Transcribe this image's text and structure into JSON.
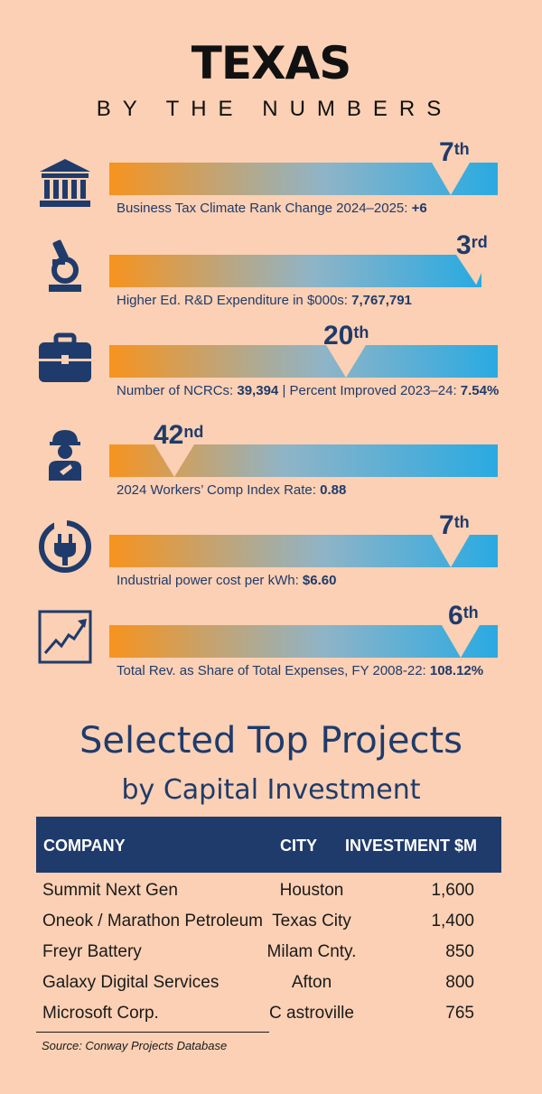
{
  "header": {
    "title": "TEXAS",
    "subtitle": "BY THE NUMBERS"
  },
  "gradient": {
    "start": "#f7931e",
    "end": "#29aae2"
  },
  "metrics": [
    {
      "icon": "courthouse-icon",
      "rank_num": "7",
      "rank_suffix": "th",
      "label": "Business Tax Climate Rank Change 2024–2025:",
      "value": "+6",
      "rank_position": 7
    },
    {
      "icon": "microscope-icon",
      "rank_num": "3",
      "rank_suffix": "rd",
      "label": "Higher Ed. R&D Expenditure in $000s:",
      "value": "7,767,791",
      "rank_position": 3
    },
    {
      "icon": "briefcase-icon",
      "rank_num": "20",
      "rank_suffix": "th",
      "label": "Number of NCRCs:",
      "value": "39,394",
      "label2": "| Percent Improved 2023–24:",
      "value2": "7.54%",
      "rank_position": 20
    },
    {
      "icon": "construction-worker-icon",
      "rank_num": "42",
      "rank_suffix": "nd",
      "label": "2024 Workers’ Comp Index Rate:",
      "value": "0.88",
      "rank_position": 42
    },
    {
      "icon": "power-plug-icon",
      "rank_num": "7",
      "rank_suffix": "th",
      "label": "Industrial power cost per kWh:",
      "value": "$6.60",
      "rank_position": 7
    },
    {
      "icon": "trend-chart-icon",
      "rank_num": "6",
      "rank_suffix": "th",
      "label": "Total Rev. as Share of Total Expenses, FY 2008-22:",
      "value": "108.12%",
      "rank_position": 6
    }
  ],
  "projects": {
    "title": "Selected Top Projects",
    "subtitle": "by Capital Investment",
    "headers": {
      "company": "COMPANY",
      "city": "CITY",
      "investment": "INVESTMENT $M"
    },
    "rows": [
      {
        "company": "Summit Next Gen",
        "city": "Houston",
        "investment": "1,600"
      },
      {
        "company": "Oneok / Marathon Petroleum",
        "city": "Texas City",
        "investment": "1,400"
      },
      {
        "company": "Freyr Battery",
        "city": "Milam Cnty.",
        "investment": "850"
      },
      {
        "company": "Galaxy Digital Services",
        "city": "Afton",
        "investment": "800"
      },
      {
        "company": "Microsoft Corp.",
        "city": "C astroville",
        "investment": "765"
      }
    ],
    "source": "Source: Conway Projects Database"
  }
}
